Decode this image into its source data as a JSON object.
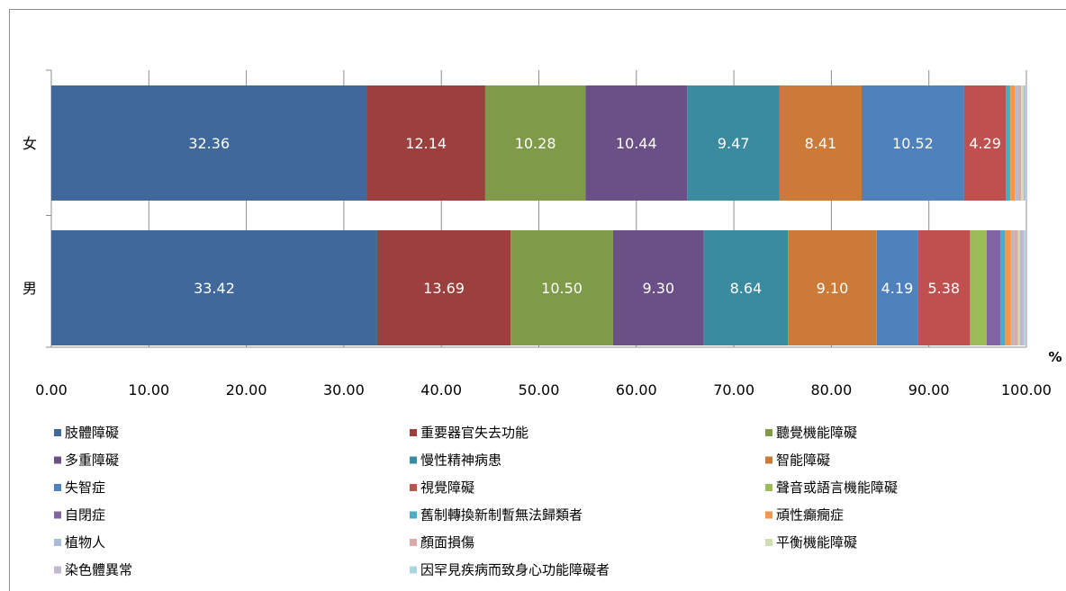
{
  "chart_data": {
    "type": "bar",
    "orientation": "horizontal",
    "stacked": true,
    "categories": [
      "女",
      "男"
    ],
    "xlim": [
      0,
      100
    ],
    "x_ticks": [
      "0.00",
      "10.00",
      "20.00",
      "30.00",
      "40.00",
      "50.00",
      "60.00",
      "70.00",
      "80.00",
      "90.00",
      "100.00"
    ],
    "unit": "%",
    "grid": true,
    "legend_position": "bottom",
    "series": [
      {
        "name": "肢體障礙",
        "color": "#41689b",
        "values": [
          32.36,
          33.42
        ],
        "labels": [
          "32.36",
          "33.42"
        ]
      },
      {
        "name": "重要器官失去功能",
        "color": "#9c403e",
        "values": [
          12.14,
          13.69
        ],
        "labels": [
          "12.14",
          "13.69"
        ]
      },
      {
        "name": "聽覺機能障礙",
        "color": "#7f9a48",
        "values": [
          10.28,
          10.5
        ],
        "labels": [
          "10.28",
          "10.50"
        ]
      },
      {
        "name": "多重障礙",
        "color": "#6a5087",
        "values": [
          10.44,
          9.3
        ],
        "labels": [
          "10.44",
          "9.30"
        ]
      },
      {
        "name": "慢性精神病患",
        "color": "#3a8ba0",
        "values": [
          9.47,
          8.64
        ],
        "labels": [
          "9.47",
          "8.64"
        ]
      },
      {
        "name": "智能障礙",
        "color": "#cc7a37",
        "values": [
          8.41,
          9.1
        ],
        "labels": [
          "8.41",
          "9.10"
        ]
      },
      {
        "name": "失智症",
        "color": "#4f81bd",
        "values": [
          10.52,
          4.19
        ],
        "labels": [
          "10.52",
          "4.19"
        ]
      },
      {
        "name": "視覺障礙",
        "color": "#c0504d",
        "values": [
          4.29,
          5.38
        ],
        "labels": [
          "4.29",
          "5.38"
        ]
      },
      {
        "name": "聲音或語言機能障礙",
        "color": "#9bbb59",
        "values": [
          0.0,
          1.7
        ],
        "labels": [
          "",
          ""
        ]
      },
      {
        "name": "自閉症",
        "color": "#8064a2",
        "values": [
          0.0,
          1.4
        ],
        "labels": [
          "",
          ""
        ]
      },
      {
        "name": "舊制轉換新制暫無法歸類者",
        "color": "#4bacc6",
        "values": [
          0.45,
          0.5
        ],
        "labels": [
          "",
          ""
        ]
      },
      {
        "name": "頑性癲癇症",
        "color": "#f79646",
        "values": [
          0.45,
          0.6
        ],
        "labels": [
          "",
          ""
        ]
      },
      {
        "name": "植物人",
        "color": "#a9bcd8",
        "values": [
          0.35,
          0.3
        ],
        "labels": [
          "",
          ""
        ]
      },
      {
        "name": "顏面損傷",
        "color": "#d9aaa9",
        "values": [
          0.3,
          0.4
        ],
        "labels": [
          "",
          ""
        ]
      },
      {
        "name": "平衡機能障礙",
        "color": "#cfddb2",
        "values": [
          0.25,
          0.2
        ],
        "labels": [
          "",
          ""
        ]
      },
      {
        "name": "染色體異常",
        "color": "#c3b6d3",
        "values": [
          0.15,
          0.4
        ],
        "labels": [
          "",
          ""
        ]
      },
      {
        "name": "因罕見疾病而致身心功能障礙者",
        "color": "#abd5e0",
        "values": [
          0.14,
          0.18
        ],
        "labels": [
          "",
          ""
        ]
      }
    ]
  }
}
